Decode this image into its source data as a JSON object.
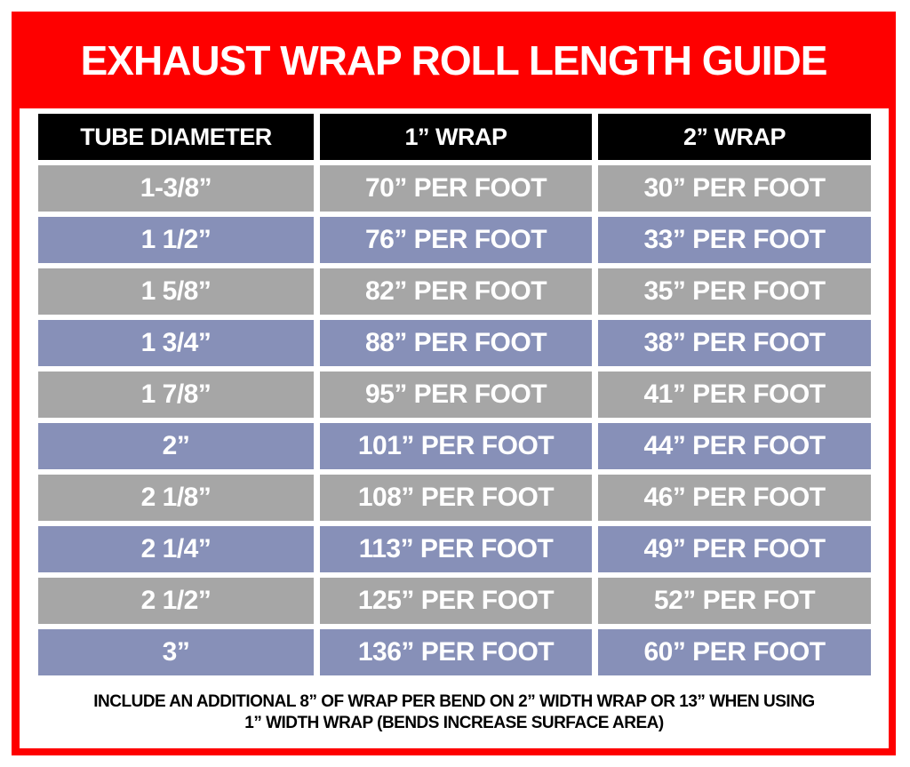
{
  "title": "EXHAUST WRAP ROLL LENGTH GUIDE",
  "colors": {
    "frame": "#fe0000",
    "header": "#000000",
    "row_odd": "#a6a6a6",
    "row_even": "#8790b8"
  },
  "table": {
    "headers": [
      "TUBE DIAMETER",
      "1” WRAP",
      "2” WRAP"
    ],
    "rows": [
      [
        "1-3/8”",
        "70” PER FOOT",
        "30” PER FOOT"
      ],
      [
        "1 1/2”",
        "76” PER FOOT",
        "33” PER FOOT"
      ],
      [
        "1 5/8”",
        "82” PER FOOT",
        "35” PER FOOT"
      ],
      [
        "1 3/4”",
        "88” PER FOOT",
        "38” PER FOOT"
      ],
      [
        "1 7/8”",
        "95” PER FOOT",
        "41” PER FOOT"
      ],
      [
        "2”",
        "101” PER FOOT",
        "44” PER FOOT"
      ],
      [
        "2 1/8”",
        "108” PER FOOT",
        "46” PER FOOT"
      ],
      [
        "2 1/4”",
        "113” PER FOOT",
        "49” PER FOOT"
      ],
      [
        "2 1/2”",
        "125” PER FOOT",
        "52” PER FOT"
      ],
      [
        "3”",
        "136” PER FOOT",
        "60” PER FOOT"
      ]
    ]
  },
  "note": {
    "line1": "INCLUDE AN ADDITIONAL 8” OF WRAP PER BEND ON 2” WIDTH WRAP OR 13” WHEN USING",
    "line2": "1” WIDTH WRAP (BENDS INCREASE SURFACE AREA)"
  }
}
